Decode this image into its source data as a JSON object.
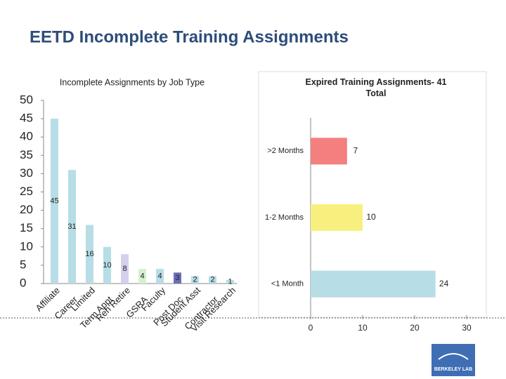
{
  "title": "EETD Incomplete Training Assignments",
  "logo": "BERKELEY LAB",
  "chart_data": [
    {
      "type": "bar",
      "title": "Incomplete Assignments by Job Type",
      "categories": [
        "Affiliate",
        "Career",
        "Limited",
        "Term Appt",
        "Reh Retire",
        "GSRA",
        "Faculty",
        "Post Doc",
        "Student Asst",
        "Contractor",
        "Visit Research"
      ],
      "values": [
        45,
        31,
        16,
        10,
        8,
        4,
        4,
        3,
        2,
        2,
        1
      ],
      "colors": [
        "#b7dde6",
        "#b7dde6",
        "#b7dde6",
        "#b7dde6",
        "#d4d0ec",
        "#d6f0cf",
        "#b7dde6",
        "#6b6fb8",
        "#b7dde6",
        "#b7dde6",
        "#b7dde6"
      ],
      "ylim": [
        0,
        50
      ],
      "yticks": [
        0,
        5,
        10,
        15,
        20,
        25,
        30,
        35,
        40,
        45,
        50
      ],
      "grid": false
    },
    {
      "type": "hbar",
      "title": "Expired Training Assignments- 41 Total",
      "categories": [
        ">2 Months",
        "1-2 Months",
        "<1 Month"
      ],
      "values": [
        7,
        10,
        24
      ],
      "colors": [
        "#f47f7f",
        "#f8f07e",
        "#b7dde6"
      ],
      "xlim": [
        0,
        30
      ],
      "xticks": [
        0,
        10,
        20,
        30
      ],
      "grid": false
    }
  ]
}
